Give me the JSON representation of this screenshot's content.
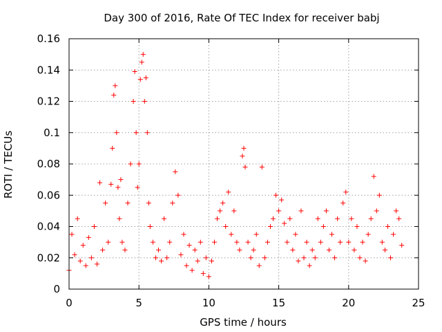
{
  "chart_data": {
    "type": "scatter",
    "title": "Day 300 of 2016, Rate Of TEC Index for receiver babj",
    "xlabel": "GPS time / hours",
    "ylabel": "ROTI / TECUs",
    "xlim": [
      0,
      25
    ],
    "ylim": [
      0,
      0.16
    ],
    "xticks": [
      0,
      5,
      10,
      15,
      20,
      25
    ],
    "xtick_labels": [
      "0",
      "5",
      "10",
      "15",
      "20",
      "25"
    ],
    "yticks": [
      0,
      0.02,
      0.04,
      0.06,
      0.08,
      0.1,
      0.12,
      0.14,
      0.16
    ],
    "ytick_labels": [
      "0",
      "0.02",
      "0.04",
      "0.06",
      "0.08",
      "0.1",
      "0.12",
      "0.14",
      "0.16"
    ],
    "grid": true,
    "marker": "+",
    "color": "#ff0000",
    "series": [
      {
        "name": "ROTI",
        "x": [
          0.0,
          0.2,
          0.4,
          0.6,
          0.8,
          1.0,
          1.2,
          1.4,
          1.6,
          1.8,
          2.0,
          2.2,
          2.4,
          2.6,
          2.8,
          3.0,
          3.1,
          3.2,
          3.3,
          3.4,
          3.5,
          3.6,
          3.7,
          3.8,
          4.0,
          4.2,
          4.4,
          4.6,
          4.7,
          4.8,
          4.9,
          5.0,
          5.1,
          5.2,
          5.3,
          5.4,
          5.5,
          5.6,
          5.7,
          5.8,
          6.0,
          6.2,
          6.4,
          6.6,
          6.8,
          7.0,
          7.2,
          7.4,
          7.6,
          7.8,
          8.0,
          8.2,
          8.4,
          8.6,
          8.8,
          9.0,
          9.2,
          9.4,
          9.6,
          9.8,
          10.0,
          10.2,
          10.4,
          10.6,
          10.8,
          11.0,
          11.2,
          11.4,
          11.6,
          11.8,
          12.0,
          12.2,
          12.4,
          12.5,
          12.6,
          12.8,
          13.0,
          13.2,
          13.4,
          13.6,
          13.8,
          14.0,
          14.2,
          14.4,
          14.6,
          14.8,
          15.0,
          15.2,
          15.4,
          15.6,
          15.8,
          16.0,
          16.2,
          16.4,
          16.6,
          16.8,
          17.0,
          17.2,
          17.4,
          17.6,
          17.8,
          18.0,
          18.2,
          18.4,
          18.6,
          18.8,
          19.0,
          19.2,
          19.4,
          19.6,
          19.8,
          20.0,
          20.2,
          20.4,
          20.6,
          20.8,
          21.0,
          21.2,
          21.4,
          21.6,
          21.8,
          22.0,
          22.2,
          22.4,
          22.6,
          22.8,
          23.0,
          23.2,
          23.4,
          23.6,
          23.8
        ],
        "y": [
          0.012,
          0.035,
          0.022,
          0.045,
          0.018,
          0.028,
          0.015,
          0.033,
          0.02,
          0.04,
          0.016,
          0.068,
          0.025,
          0.055,
          0.03,
          0.067,
          0.09,
          0.124,
          0.13,
          0.1,
          0.065,
          0.045,
          0.07,
          0.03,
          0.025,
          0.055,
          0.08,
          0.12,
          0.139,
          0.1,
          0.065,
          0.08,
          0.134,
          0.145,
          0.15,
          0.12,
          0.135,
          0.1,
          0.055,
          0.04,
          0.03,
          0.02,
          0.025,
          0.018,
          0.045,
          0.02,
          0.03,
          0.055,
          0.075,
          0.06,
          0.022,
          0.035,
          0.015,
          0.028,
          0.012,
          0.025,
          0.018,
          0.03,
          0.01,
          0.02,
          0.008,
          0.018,
          0.03,
          0.045,
          0.05,
          0.055,
          0.04,
          0.062,
          0.035,
          0.05,
          0.03,
          0.025,
          0.085,
          0.09,
          0.078,
          0.03,
          0.02,
          0.025,
          0.035,
          0.015,
          0.078,
          0.02,
          0.03,
          0.04,
          0.045,
          0.06,
          0.05,
          0.057,
          0.042,
          0.03,
          0.045,
          0.025,
          0.035,
          0.018,
          0.05,
          0.02,
          0.03,
          0.015,
          0.025,
          0.02,
          0.045,
          0.03,
          0.04,
          0.05,
          0.025,
          0.035,
          0.02,
          0.045,
          0.03,
          0.055,
          0.062,
          0.03,
          0.045,
          0.025,
          0.04,
          0.02,
          0.03,
          0.018,
          0.035,
          0.045,
          0.072,
          0.05,
          0.06,
          0.03,
          0.025,
          0.04,
          0.02,
          0.035,
          0.05,
          0.045,
          0.028
        ]
      }
    ]
  }
}
